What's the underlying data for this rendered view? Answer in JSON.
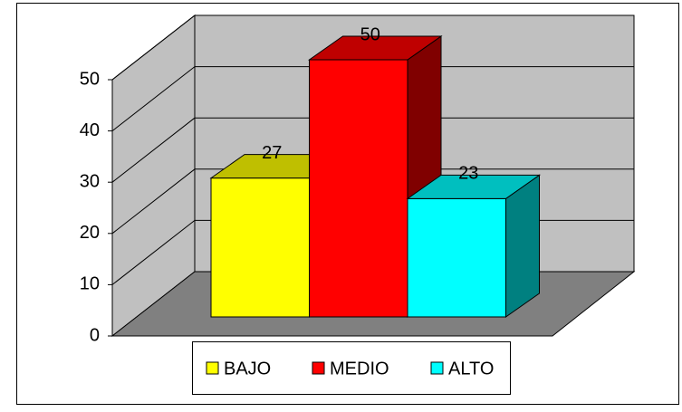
{
  "chart_data": {
    "type": "bar3d",
    "series": [
      {
        "name": "BAJO",
        "color": "#ffff00",
        "values": [
          27
        ]
      },
      {
        "name": "MEDIO",
        "color": "#ff0000",
        "values": [
          50
        ]
      },
      {
        "name": "ALTO",
        "color": "#00ffff",
        "values": [
          23
        ]
      }
    ],
    "ylim": [
      0,
      50
    ],
    "yticks": [
      0,
      10,
      20,
      30,
      40,
      50
    ],
    "grid": true,
    "legend": "bottom"
  }
}
